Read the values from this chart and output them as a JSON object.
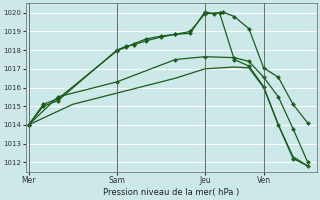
{
  "xlabel": "Pression niveau de la mer( hPa )",
  "bg_color": "#cce8e8",
  "grid_color": "#ffffff",
  "line_color": "#1a5c1a",
  "ylim": [
    1011.5,
    1020.5
  ],
  "yticks": [
    1012,
    1013,
    1014,
    1015,
    1016,
    1017,
    1018,
    1019,
    1020
  ],
  "xtick_labels": [
    "Mer",
    "Sam",
    "Jeu",
    "Ven"
  ],
  "xtick_positions": [
    0,
    3,
    6,
    8
  ],
  "xlim": [
    -0.1,
    9.8
  ],
  "vlines": [
    0,
    3,
    6,
    8
  ],
  "series": [
    {
      "x": [
        0,
        0.5,
        1.0,
        3.0,
        3.3,
        3.6,
        4.0,
        4.5,
        5.0,
        5.5,
        6.0,
        6.3,
        6.6,
        7.0,
        7.5,
        8.0,
        8.5,
        9.0,
        9.5
      ],
      "y": [
        1014.0,
        1015.0,
        1015.3,
        1018.0,
        1018.2,
        1018.3,
        1018.5,
        1018.7,
        1018.85,
        1018.9,
        1020.05,
        1019.95,
        1020.05,
        1019.8,
        1019.15,
        1017.05,
        1016.55,
        1015.1,
        1014.1
      ],
      "has_markers": true
    },
    {
      "x": [
        0,
        0.5,
        1.0,
        3.0,
        3.3,
        3.6,
        4.0,
        4.5,
        5.0,
        5.5,
        6.0,
        6.5,
        7.0,
        7.5,
        8.0,
        8.5,
        9.0,
        9.5
      ],
      "y": [
        1014.0,
        1015.1,
        1015.4,
        1017.95,
        1018.15,
        1018.35,
        1018.6,
        1018.75,
        1018.85,
        1019.0,
        1019.95,
        1020.0,
        1017.5,
        1017.15,
        1016.05,
        1014.0,
        1012.2,
        1011.8
      ],
      "has_markers": true
    },
    {
      "x": [
        0,
        1.0,
        3.0,
        5.0,
        6.0,
        7.0,
        7.5,
        8.0,
        8.5,
        9.0,
        9.5
      ],
      "y": [
        1014.0,
        1015.5,
        1016.3,
        1017.5,
        1017.65,
        1017.6,
        1017.4,
        1016.55,
        1015.5,
        1013.8,
        1012.0
      ],
      "has_markers": true
    },
    {
      "x": [
        0,
        1.5,
        3.0,
        5.0,
        6.0,
        7.0,
        7.5,
        8.0,
        8.5,
        9.0,
        9.5
      ],
      "y": [
        1014.0,
        1015.1,
        1015.7,
        1016.5,
        1017.0,
        1017.1,
        1017.05,
        1016.0,
        1014.0,
        1012.3,
        1011.8
      ],
      "has_markers": false
    }
  ]
}
